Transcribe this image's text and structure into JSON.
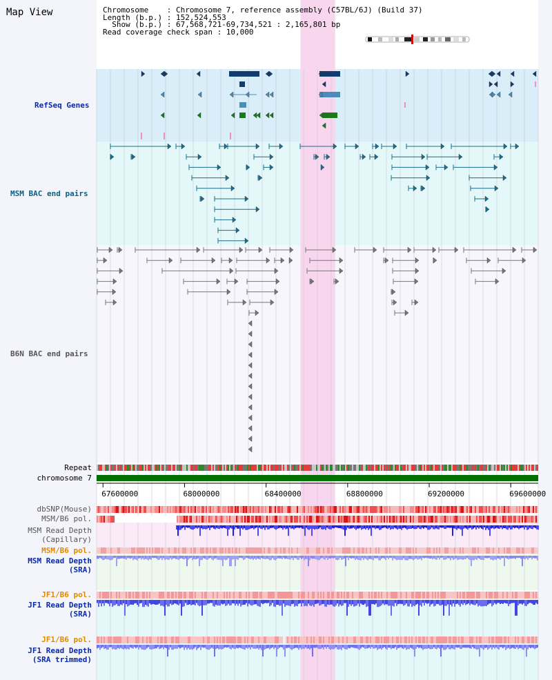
{
  "view_title": "Map View",
  "info": {
    "chromosome": "Chromosome    : Chromosome 7, reference assembly (C57BL/6J) (Build 37)",
    "length": "Length (b.p.) : 152,524,553",
    "show": "  Show (b.p.) : 67,568,721-69,734,521 : 2,165,801 bp",
    "coverage": "Read coverage check span : 10,000"
  },
  "region": {
    "start": 67568721,
    "end": 69734521,
    "highlight": [
      68568721,
      68738721
    ]
  },
  "axis_ticks": [
    "67600000",
    "68000000",
    "68400000",
    "68800000",
    "69200000",
    "69600000"
  ],
  "axis_tick_values": [
    67600000,
    68000000,
    68400000,
    68800000,
    69200000,
    69600000
  ],
  "tracks": {
    "refseq": "RefSeq Genes",
    "msm_bac": "MSM BAC end pairs",
    "b6n_bac": "B6N BAC end pairs",
    "repeat": "Repeat",
    "chromosome": "chromosome 7",
    "dbsnp": "dbSNP(Mouse)",
    "msm_b6_pol_1": "MSM/B6 pol.",
    "msm_depth_cap": "MSM Read Depth\n(Capillary)",
    "msm_b6_pol_2": "MSM/B6 pol.",
    "msm_depth_sra": "MSM Read Depth\n(SRA)",
    "jf1_b6_pol_1": "JF1/B6 pol.",
    "jf1_depth_sra": "JF1 Read Depth\n(SRA)",
    "jf1_b6_pol_2": "JF1/B6 pol.",
    "jf1_depth_trim": "JF1 Read Depth\n(SRA trimmed)"
  },
  "colors": {
    "highlight": "#f7d6ee",
    "refseq_bg": "#d9eef8",
    "msm_bg": "#e4f7f9",
    "gene_dark": "#123b6e",
    "gene_light": "#4a8db8",
    "gene_green": "#1a7a1a",
    "bac_teal": "#1a6f8c",
    "bac_gray": "#777777",
    "chromosome_bar": "#007000",
    "depth_blue": "#3c3ce0",
    "pol_red": "#e83030"
  }
}
